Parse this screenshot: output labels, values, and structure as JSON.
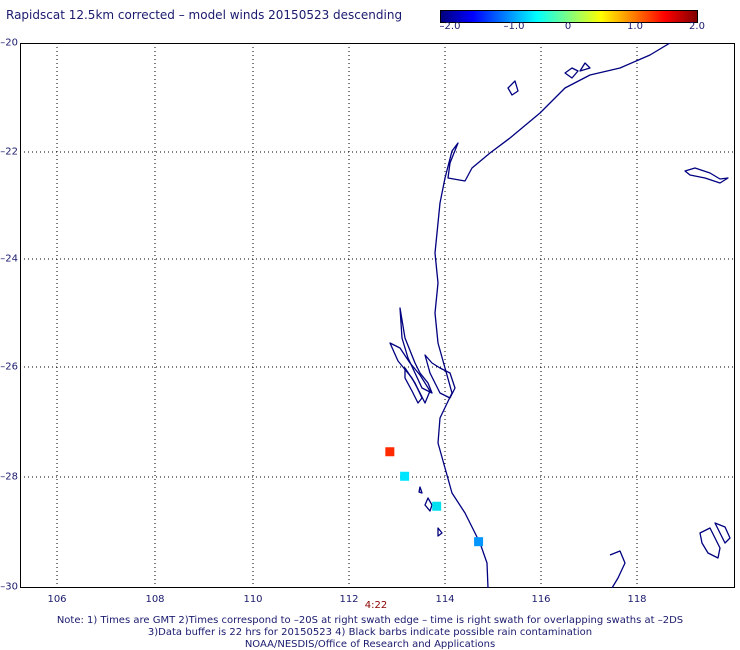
{
  "title": "Rapidscat 12.5km corrected – model winds 20150523 descending",
  "colorbar": {
    "ticks": [
      "–2.0",
      "–1.0",
      "0",
      "1.0",
      "2.0"
    ],
    "range": [
      -2.0,
      2.0
    ]
  },
  "map": {
    "lon_range": [
      105,
      119.5
    ],
    "lat_range": [
      -30,
      -20
    ],
    "x_ticks": [
      "106",
      "108",
      "110",
      "112",
      "114",
      "116",
      "118"
    ],
    "y_ticks": [
      "–20",
      "–22",
      "–24",
      "–26",
      "–28",
      "–30"
    ],
    "gridlines": true,
    "coastline_color": "#000080",
    "time_label": "4:22",
    "time_label_color": "#8b0000",
    "wind_points": [
      {
        "lon": 112.5,
        "lat": -27.5,
        "value": 1.8,
        "color": "#ff2a00"
      },
      {
        "lon": 112.8,
        "lat": -27.95,
        "value": -0.6,
        "color": "#00e5ff"
      },
      {
        "lon": 113.45,
        "lat": -28.5,
        "value": -0.5,
        "color": "#00e0f0"
      },
      {
        "lon": 114.3,
        "lat": -29.15,
        "value": -1.2,
        "color": "#0096ff"
      }
    ]
  },
  "notes": [
    "Note: 1) Times are GMT 2)Times correspond to –20S at right swath edge – time is right swath for overlapping swaths at –2DS",
    "3)Data buffer is 22 hrs for 20150523 4) Black barbs indicate possible rain contamination",
    "NOAA/NESDIS/Office of Research and Applications"
  ]
}
